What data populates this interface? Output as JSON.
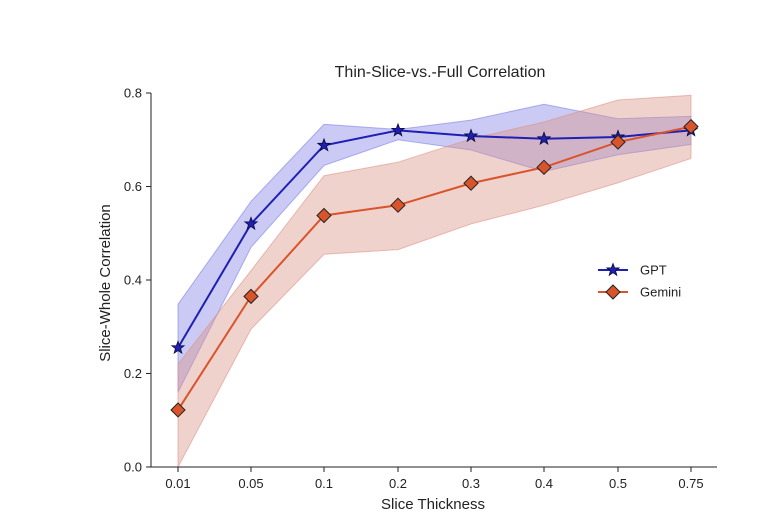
{
  "chart_data": {
    "type": "line",
    "title": "Thin-Slice-vs.-Full Correlation",
    "xlabel": "Slice Thickness",
    "ylabel": "Slice-Whole Correlation",
    "categories": [
      "0.01",
      "0.05",
      "0.1",
      "0.2",
      "0.3",
      "0.4",
      "0.5",
      "0.75"
    ],
    "ylim": [
      0.0,
      0.8
    ],
    "yticks": [
      "0.0",
      "0.2",
      "0.4",
      "0.6",
      "0.8"
    ],
    "grid": false,
    "legend_position": "right",
    "series": [
      {
        "name": "GPT",
        "marker": "star",
        "color": "#1f1fb4",
        "band_color": "#8080e6",
        "values": [
          0.255,
          0.52,
          0.688,
          0.72,
          0.708,
          0.702,
          0.706,
          0.72
        ],
        "lower": [
          0.16,
          0.47,
          0.645,
          0.7,
          0.678,
          0.632,
          0.668,
          0.69
        ],
        "upper": [
          0.348,
          0.568,
          0.733,
          0.722,
          0.742,
          0.776,
          0.745,
          0.75
        ]
      },
      {
        "name": "Gemini",
        "marker": "diamond",
        "color": "#d9542b",
        "band_color": "#dc9489",
        "values": [
          0.122,
          0.365,
          0.538,
          0.56,
          0.607,
          0.641,
          0.695,
          0.728
        ],
        "lower": [
          0.0,
          0.295,
          0.455,
          0.465,
          0.52,
          0.56,
          0.608,
          0.66
        ],
        "upper": [
          0.22,
          0.42,
          0.623,
          0.652,
          0.702,
          0.738,
          0.785,
          0.795
        ]
      }
    ]
  }
}
